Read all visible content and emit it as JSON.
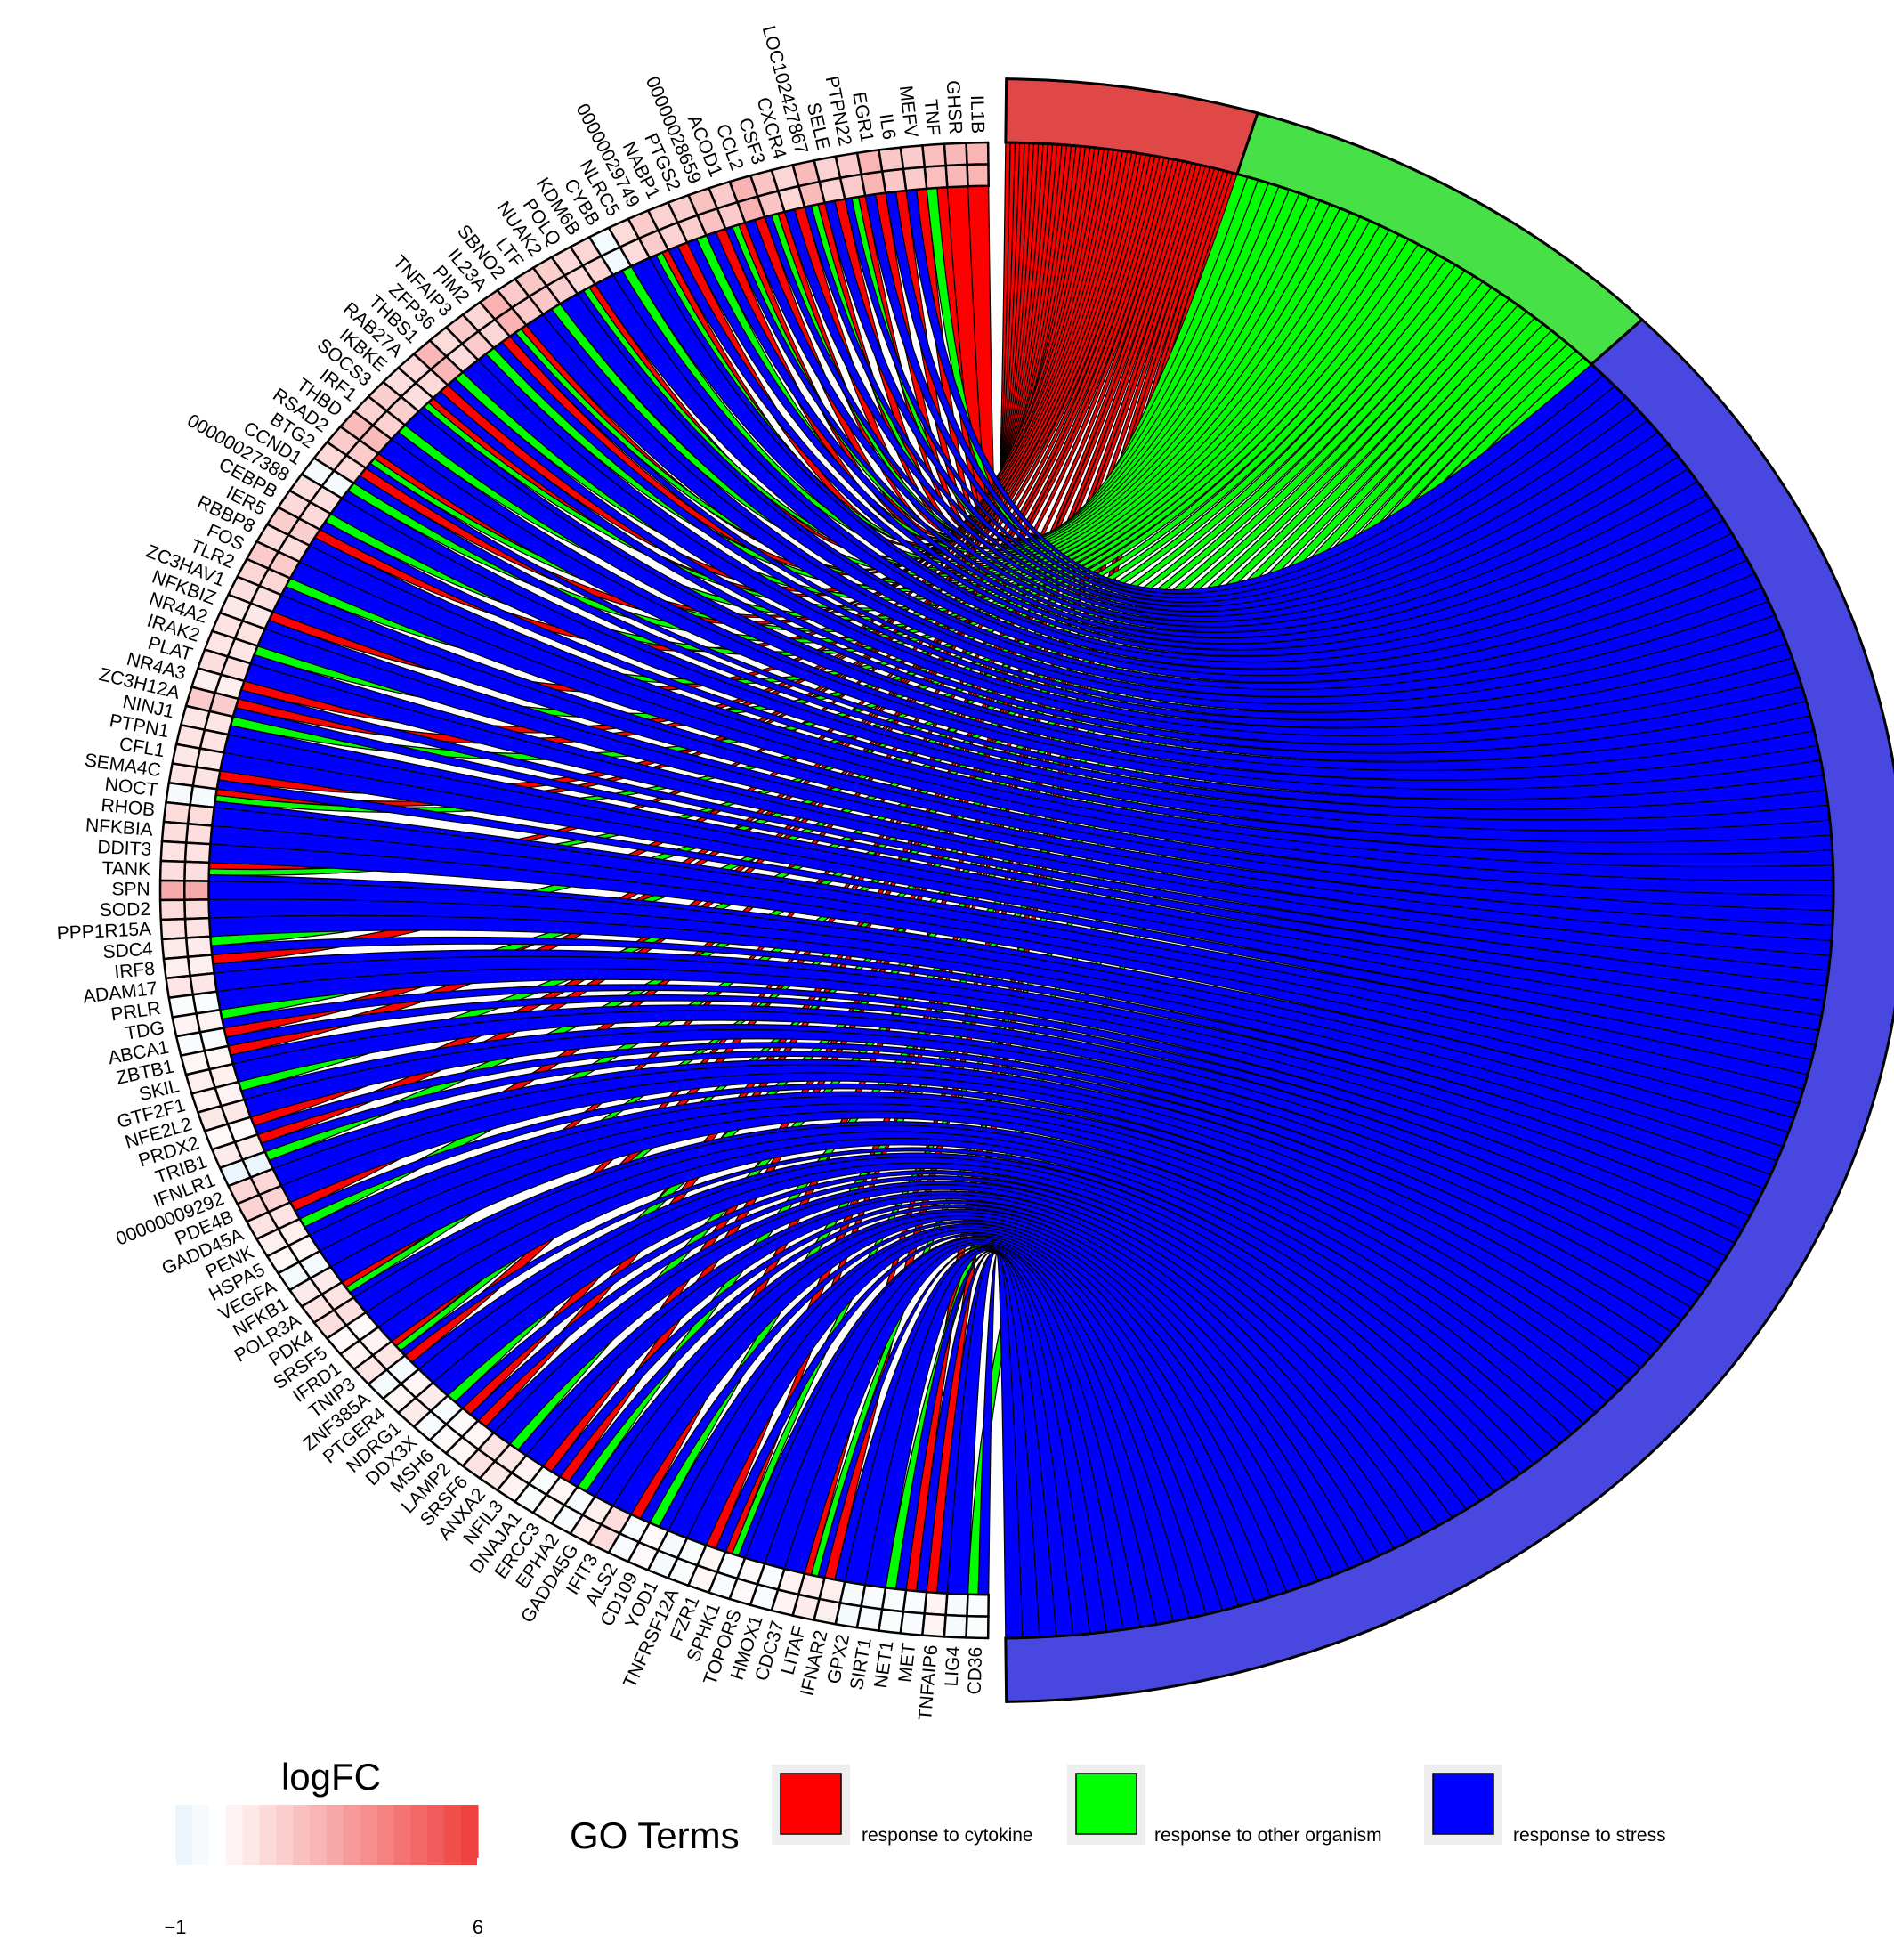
{
  "chart_data": {
    "type": "chord",
    "legend_goterms": {
      "title": "GO Terms",
      "items": [
        {
          "label": "response to cytokine",
          "color": "#ff0000"
        },
        {
          "label": "response to other organism",
          "color": "#00ff00"
        },
        {
          "label": "response to stress",
          "color": "#0000ff"
        }
      ]
    },
    "legend_logfc": {
      "title": "logFC",
      "min_label": "−1",
      "max_label": "6",
      "min": -1,
      "max": 6,
      "low_color": "#e6f4fb",
      "mid_color": "#ffffff",
      "high_color": "#ef3b3b"
    },
    "sectors": [
      {
        "term": "response to cytokine",
        "color": "#e04848",
        "share": 0.09
      },
      {
        "term": "response to other organism",
        "color": "#47e047",
        "share": 0.16
      },
      {
        "term": "response to stress",
        "color": "#4848e0",
        "share": 0.75
      }
    ],
    "genes": [
      {
        "name": "IL1B",
        "logfc": 2.3
      },
      {
        "name": "GHSR",
        "logfc": 2.2
      },
      {
        "name": "TNF",
        "logfc": 2.0
      },
      {
        "name": "MEFV",
        "logfc": 1.6
      },
      {
        "name": "IL6",
        "logfc": 1.7
      },
      {
        "name": "EGR1",
        "logfc": 2.3
      },
      {
        "name": "PTPN22",
        "logfc": 1.6
      },
      {
        "name": "SELE",
        "logfc": 1.4
      },
      {
        "name": "LOC102427867",
        "logfc": 2.1
      },
      {
        "name": "CXCR4",
        "logfc": 1.3
      },
      {
        "name": "CSF3",
        "logfc": 1.8
      },
      {
        "name": "CCL2",
        "logfc": 2.4
      },
      {
        "name": "ACOD1",
        "logfc": 1.6
      },
      {
        "name": "00000028659",
        "logfc": 1.9
      },
      {
        "name": "PTGS2",
        "logfc": 1.5
      },
      {
        "name": "NABP1",
        "logfc": 1.4
      },
      {
        "name": "00000029749",
        "logfc": 1.6
      },
      {
        "name": "NLRC5",
        "logfc": 1.1
      },
      {
        "name": "CYBB",
        "logfc": -0.5
      },
      {
        "name": "KDM6B",
        "logfc": 1.3
      },
      {
        "name": "POLQ",
        "logfc": 1.2
      },
      {
        "name": "NUAK2",
        "logfc": 1.5
      },
      {
        "name": "LTF",
        "logfc": 1.7
      },
      {
        "name": "SBNO2",
        "logfc": 1.6
      },
      {
        "name": "IL23A",
        "logfc": 2.4
      },
      {
        "name": "PIM2",
        "logfc": 1.3
      },
      {
        "name": "TNFAIP3",
        "logfc": 1.6
      },
      {
        "name": "ZFP36",
        "logfc": 1.1
      },
      {
        "name": "THBS1",
        "logfc": 2.2
      },
      {
        "name": "RAB27A",
        "logfc": 1.2
      },
      {
        "name": "IKBKE",
        "logfc": 1.0
      },
      {
        "name": "SOCS3",
        "logfc": 1.5
      },
      {
        "name": "IRF1",
        "logfc": 1.4
      },
      {
        "name": "THBD",
        "logfc": 2.1
      },
      {
        "name": "RSAD2",
        "logfc": 1.6
      },
      {
        "name": "BTG2",
        "logfc": 1.2
      },
      {
        "name": "CCND1",
        "logfc": -0.4
      },
      {
        "name": "00000027388",
        "logfc": 1.0
      },
      {
        "name": "CEBPB",
        "logfc": 1.2
      },
      {
        "name": "IER5",
        "logfc": 1.5
      },
      {
        "name": "RBBP8",
        "logfc": 1.1
      },
      {
        "name": "FOS",
        "logfc": 1.6
      },
      {
        "name": "TLR2",
        "logfc": 1.3
      },
      {
        "name": "ZC3HAV1",
        "logfc": 1.0
      },
      {
        "name": "NFKBIZ",
        "logfc": 0.7
      },
      {
        "name": "NR4A2",
        "logfc": 0.9
      },
      {
        "name": "IRAK2",
        "logfc": 0.8
      },
      {
        "name": "PLAT",
        "logfc": 1.0
      },
      {
        "name": "NR4A3",
        "logfc": 0.5
      },
      {
        "name": "ZC3H12A",
        "logfc": 1.6
      },
      {
        "name": "NINJ1",
        "logfc": 0.8
      },
      {
        "name": "PTPN1",
        "logfc": 0.9
      },
      {
        "name": "CFL1",
        "logfc": 0.7
      },
      {
        "name": "SEMA4C",
        "logfc": 0.9
      },
      {
        "name": "NOCT",
        "logfc": -0.4
      },
      {
        "name": "RHOB",
        "logfc": 1.1
      },
      {
        "name": "NFKBIA",
        "logfc": 1.0
      },
      {
        "name": "DDIT3",
        "logfc": 0.9
      },
      {
        "name": "TANK",
        "logfc": 1.0
      },
      {
        "name": "SPN",
        "logfc": 2.6
      },
      {
        "name": "SOD2",
        "logfc": 1.1
      },
      {
        "name": "PPP1R15A",
        "logfc": 0.9
      },
      {
        "name": "SDC4",
        "logfc": 0.6
      },
      {
        "name": "IRF8",
        "logfc": 0.5
      },
      {
        "name": "ADAM17",
        "logfc": 0.8
      },
      {
        "name": "PRLR",
        "logfc": -0.2
      },
      {
        "name": "TDG",
        "logfc": 0.4
      },
      {
        "name": "ABCA1",
        "logfc": -0.3
      },
      {
        "name": "ZBTB1",
        "logfc": 0.3
      },
      {
        "name": "SKIL",
        "logfc": 0.5
      },
      {
        "name": "GTF2F1",
        "logfc": 0.4
      },
      {
        "name": "NFE2L2",
        "logfc": 0.7
      },
      {
        "name": "PRDX2",
        "logfc": 0.2
      },
      {
        "name": "TRIB1",
        "logfc": 0.6
      },
      {
        "name": "IFNLR1",
        "logfc": -0.8
      },
      {
        "name": "00000009292",
        "logfc": 1.3
      },
      {
        "name": "PDE4B",
        "logfc": 1.4
      },
      {
        "name": "GADD45A",
        "logfc": 0.9
      },
      {
        "name": "PENK",
        "logfc": 0.5
      },
      {
        "name": "HSPA5",
        "logfc": 0.3
      },
      {
        "name": "VEGFA",
        "logfc": -0.5
      },
      {
        "name": "NFKB1",
        "logfc": 0.6
      },
      {
        "name": "POLR3A",
        "logfc": 0.9
      },
      {
        "name": "PDK4",
        "logfc": 1.0
      },
      {
        "name": "SRSF5",
        "logfc": 0.2
      },
      {
        "name": "IFRD1",
        "logfc": 0.4
      },
      {
        "name": "TNIP3",
        "logfc": 0.8
      },
      {
        "name": "ZNF385A",
        "logfc": -0.4
      },
      {
        "name": "PTGER4",
        "logfc": 0.3
      },
      {
        "name": "NDRG1",
        "logfc": 0.6
      },
      {
        "name": "DDX3X",
        "logfc": -0.3
      },
      {
        "name": "MSH6",
        "logfc": 0.2
      },
      {
        "name": "LAMP2",
        "logfc": 0.3
      },
      {
        "name": "SRSF6",
        "logfc": 0.9
      },
      {
        "name": "ANXA2",
        "logfc": 0.7
      },
      {
        "name": "NFIL3",
        "logfc": 0.4
      },
      {
        "name": "DNAJA1",
        "logfc": -0.2
      },
      {
        "name": "ERCC3",
        "logfc": 0.3
      },
      {
        "name": "EPHA2",
        "logfc": -0.3
      },
      {
        "name": "GADD45G",
        "logfc": 0.5
      },
      {
        "name": "IFIT3",
        "logfc": 1.1
      },
      {
        "name": "ALS2",
        "logfc": -0.3
      },
      {
        "name": "CD109",
        "logfc": 0.2
      },
      {
        "name": "YOD1",
        "logfc": -0.4
      },
      {
        "name": "TNFRSF12A",
        "logfc": -0.2
      },
      {
        "name": "FZR1",
        "logfc": 0.3
      },
      {
        "name": "SPHK1",
        "logfc": -0.3
      },
      {
        "name": "TOPORS",
        "logfc": 0.2
      },
      {
        "name": "HMOX1",
        "logfc": -0.3
      },
      {
        "name": "CDC37",
        "logfc": 0.4
      },
      {
        "name": "LITAF",
        "logfc": 0.6
      },
      {
        "name": "IFNAR2",
        "logfc": 0.5
      },
      {
        "name": "GPX2",
        "logfc": -0.4
      },
      {
        "name": "SIRT1",
        "logfc": -0.3
      },
      {
        "name": "NET1",
        "logfc": -0.2
      },
      {
        "name": "MET",
        "logfc": -0.3
      },
      {
        "name": "TNFAIP6",
        "logfc": 0.4
      },
      {
        "name": "LIG4",
        "logfc": -0.4
      },
      {
        "name": "CD36",
        "logfc": -0.2
      }
    ]
  }
}
